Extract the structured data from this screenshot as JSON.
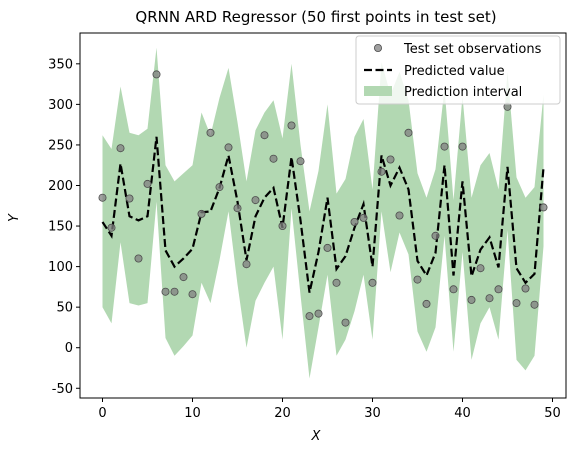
{
  "chart_data": {
    "type": "line",
    "title": "QRNN ARD Regressor (50 first points in test set)",
    "xlabel": "X",
    "ylabel": "Y",
    "xlim": [
      -2.5,
      51.5
    ],
    "ylim": [
      -62,
      388
    ],
    "xticks": [
      0,
      10,
      20,
      30,
      40,
      50
    ],
    "yticks": [
      -50,
      0,
      50,
      100,
      150,
      200,
      250,
      300,
      350
    ],
    "grid": false,
    "legend_position": "top-right",
    "colors": {
      "observations": "#808080",
      "prediction": "#000000",
      "interval": "#b2d8b2"
    },
    "series": [
      {
        "name": "Test set observations",
        "kind": "scatter",
        "x": [
          0,
          1,
          2,
          3,
          4,
          5,
          6,
          7,
          8,
          9,
          10,
          11,
          12,
          13,
          14,
          15,
          16,
          17,
          18,
          19,
          20,
          21,
          22,
          23,
          24,
          25,
          26,
          27,
          28,
          29,
          30,
          31,
          32,
          33,
          34,
          35,
          36,
          37,
          38,
          39,
          40,
          41,
          42,
          43,
          44,
          45,
          46,
          47,
          48,
          49
        ],
        "y": [
          185,
          148,
          246,
          184,
          110,
          202,
          337,
          69,
          69,
          87,
          66,
          165,
          265,
          198,
          247,
          172,
          103,
          182,
          262,
          233,
          150,
          274,
          230,
          39,
          42,
          123,
          80,
          31,
          155,
          160,
          80,
          217,
          232,
          163,
          265,
          84,
          54,
          138,
          248,
          72,
          248,
          59,
          98,
          61,
          72,
          297,
          55,
          73,
          53,
          173
        ]
      },
      {
        "name": "Predicted value",
        "kind": "line",
        "x": [
          0,
          1,
          2,
          3,
          4,
          5,
          6,
          7,
          8,
          9,
          10,
          11,
          12,
          13,
          14,
          15,
          16,
          17,
          18,
          19,
          20,
          21,
          22,
          23,
          24,
          25,
          26,
          27,
          28,
          29,
          30,
          31,
          32,
          33,
          34,
          35,
          36,
          37,
          38,
          39,
          40,
          41,
          42,
          43,
          44,
          45,
          46,
          47,
          48,
          49
        ],
        "y": [
          155,
          138,
          227,
          162,
          157,
          162,
          260,
          120,
          100,
          110,
          122,
          167,
          168,
          197,
          237,
          180,
          108,
          162,
          185,
          197,
          148,
          235,
          157,
          68,
          118,
          185,
          97,
          113,
          148,
          177,
          100,
          237,
          200,
          222,
          195,
          107,
          89,
          117,
          225,
          89,
          205,
          88,
          121,
          136,
          99,
          223,
          98,
          80,
          91,
          222
        ]
      },
      {
        "name": " Prediction interval",
        "kind": "band",
        "x": [
          0,
          1,
          2,
          3,
          4,
          5,
          6,
          7,
          8,
          9,
          10,
          11,
          12,
          13,
          14,
          15,
          16,
          17,
          18,
          19,
          20,
          21,
          22,
          23,
          24,
          25,
          26,
          27,
          28,
          29,
          30,
          31,
          32,
          33,
          34,
          35,
          36,
          37,
          38,
          39,
          40,
          41,
          42,
          43,
          44,
          45,
          46,
          47,
          48,
          49
        ],
        "lower": [
          50,
          30,
          130,
          55,
          52,
          55,
          180,
          12,
          -10,
          2,
          15,
          80,
          55,
          108,
          168,
          78,
          0,
          58,
          80,
          100,
          10,
          172,
          65,
          -38,
          25,
          90,
          -10,
          10,
          45,
          90,
          10,
          168,
          93,
          142,
          115,
          20,
          -5,
          25,
          138,
          -5,
          118,
          -15,
          30,
          50,
          10,
          145,
          -15,
          -28,
          -10,
          125
        ],
        "upper": [
          262,
          245,
          322,
          265,
          262,
          270,
          370,
          225,
          205,
          215,
          225,
          290,
          262,
          308,
          345,
          278,
          205,
          268,
          290,
          305,
          258,
          350,
          250,
          168,
          218,
          300,
          190,
          208,
          260,
          282,
          195,
          352,
          312,
          340,
          305,
          215,
          185,
          220,
          320,
          182,
          310,
          185,
          225,
          240,
          195,
          340,
          210,
          185,
          198,
          312
        ]
      }
    ]
  }
}
